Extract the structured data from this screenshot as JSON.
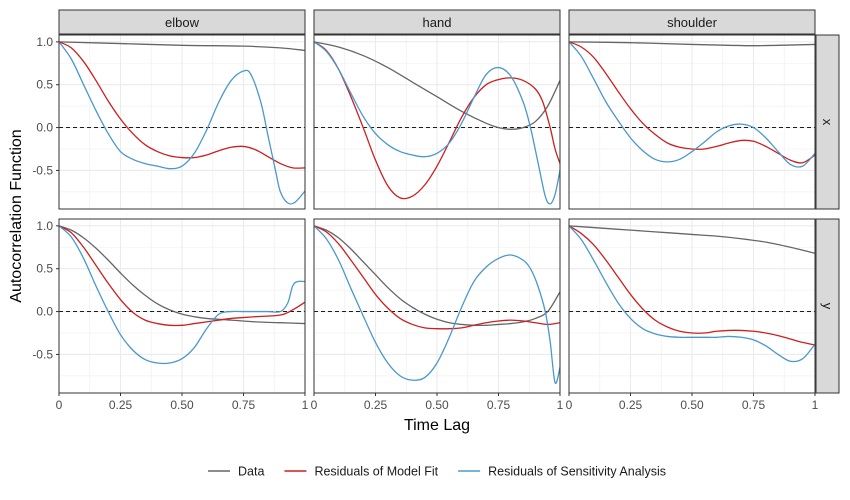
{
  "chart_data": {
    "type": "line",
    "xlabel": "Time Lag",
    "ylabel": "Autocorrelation Function",
    "xlim": [
      0,
      1
    ],
    "ylim": [
      -0.95,
      1.08
    ],
    "x_ticks": [
      0,
      0.25,
      0.5,
      0.75,
      1
    ],
    "x_tick_labels": [
      "0",
      "0.25",
      "0.50",
      "0.75",
      "1"
    ],
    "y_ticks": [
      -0.5,
      0,
      0.5,
      1
    ],
    "y_tick_labels": [
      "-0.5",
      "0.0",
      "0.5",
      "1.0"
    ],
    "reference_line": {
      "y": 0,
      "style": "dashed"
    },
    "grid": true,
    "legend_position": "bottom",
    "columns": [
      "elbow",
      "hand",
      "shoulder"
    ],
    "rows": [
      "x",
      "y"
    ],
    "colors": {
      "Data": "#666666",
      "Residuals of Model Fit": "#cc1f1f",
      "Residuals of Sensitivity Analysis": "#4a98cc"
    },
    "legend": [
      "Data",
      "Residuals of Model Fit",
      "Residuals of Sensitivity Analysis"
    ],
    "panels": [
      {
        "col": "elbow",
        "row": "x",
        "series": [
          {
            "name": "Data",
            "x": [
              0,
              0.25,
              0.5,
              0.75,
              0.9,
              1.0
            ],
            "y": [
              1.0,
              0.98,
              0.96,
              0.95,
              0.93,
              0.9
            ]
          },
          {
            "name": "Residuals of Model Fit",
            "x": [
              0,
              0.05,
              0.1,
              0.15,
              0.2,
              0.25,
              0.3,
              0.35,
              0.4,
              0.45,
              0.5,
              0.55,
              0.6,
              0.65,
              0.7,
              0.75,
              0.8,
              0.85,
              0.9,
              0.95,
              1.0
            ],
            "y": [
              1.0,
              0.93,
              0.77,
              0.55,
              0.31,
              0.1,
              -0.07,
              -0.2,
              -0.28,
              -0.33,
              -0.35,
              -0.35,
              -0.32,
              -0.27,
              -0.23,
              -0.22,
              -0.26,
              -0.34,
              -0.42,
              -0.47,
              -0.47
            ]
          },
          {
            "name": "Residuals of Sensitivity Analysis",
            "x": [
              0,
              0.05,
              0.1,
              0.15,
              0.2,
              0.25,
              0.3,
              0.35,
              0.4,
              0.45,
              0.5,
              0.55,
              0.6,
              0.65,
              0.7,
              0.75,
              0.78,
              0.82,
              0.85,
              0.88,
              0.9,
              0.93,
              0.96,
              1.0
            ],
            "y": [
              1.0,
              0.8,
              0.5,
              0.2,
              -0.07,
              -0.28,
              -0.37,
              -0.42,
              -0.45,
              -0.48,
              -0.45,
              -0.3,
              -0.03,
              0.3,
              0.55,
              0.66,
              0.62,
              0.3,
              -0.1,
              -0.5,
              -0.75,
              -0.88,
              -0.87,
              -0.74
            ]
          }
        ]
      },
      {
        "col": "hand",
        "row": "x",
        "series": [
          {
            "name": "Data",
            "x": [
              0,
              0.1,
              0.2,
              0.3,
              0.4,
              0.5,
              0.6,
              0.7,
              0.75,
              0.8,
              0.85,
              0.9,
              0.95,
              1.0
            ],
            "y": [
              1.0,
              0.94,
              0.84,
              0.7,
              0.53,
              0.36,
              0.19,
              0.05,
              0.0,
              -0.02,
              0.0,
              0.07,
              0.25,
              0.55
            ]
          },
          {
            "name": "Residuals of Model Fit",
            "x": [
              0,
              0.05,
              0.1,
              0.15,
              0.2,
              0.25,
              0.3,
              0.35,
              0.4,
              0.45,
              0.5,
              0.55,
              0.6,
              0.65,
              0.7,
              0.75,
              0.8,
              0.85,
              0.9,
              0.93,
              0.96,
              0.98,
              1.0
            ],
            "y": [
              1.0,
              0.9,
              0.68,
              0.36,
              0.0,
              -0.38,
              -0.68,
              -0.82,
              -0.8,
              -0.67,
              -0.45,
              -0.17,
              0.12,
              0.35,
              0.5,
              0.56,
              0.58,
              0.55,
              0.45,
              0.3,
              0.0,
              -0.25,
              -0.42
            ]
          },
          {
            "name": "Residuals of Sensitivity Analysis",
            "x": [
              0,
              0.05,
              0.1,
              0.15,
              0.2,
              0.25,
              0.3,
              0.35,
              0.4,
              0.45,
              0.5,
              0.55,
              0.6,
              0.65,
              0.7,
              0.75,
              0.8,
              0.85,
              0.88,
              0.91,
              0.94,
              0.96,
              0.98,
              1.0
            ],
            "y": [
              1.0,
              0.89,
              0.68,
              0.4,
              0.13,
              -0.07,
              -0.2,
              -0.28,
              -0.32,
              -0.34,
              -0.3,
              -0.18,
              0.05,
              0.35,
              0.62,
              0.7,
              0.6,
              0.3,
              0.0,
              -0.4,
              -0.8,
              -0.89,
              -0.78,
              -0.5
            ]
          }
        ]
      },
      {
        "col": "shoulder",
        "row": "x",
        "series": [
          {
            "name": "Data",
            "x": [
              0,
              0.25,
              0.5,
              0.65,
              0.75,
              0.85,
              1.0
            ],
            "y": [
              1.0,
              0.99,
              0.97,
              0.96,
              0.955,
              0.96,
              0.97
            ]
          },
          {
            "name": "Residuals of Model Fit",
            "x": [
              0,
              0.05,
              0.1,
              0.15,
              0.2,
              0.25,
              0.3,
              0.35,
              0.4,
              0.45,
              0.5,
              0.55,
              0.6,
              0.65,
              0.7,
              0.75,
              0.8,
              0.85,
              0.9,
              0.95,
              1.0
            ],
            "y": [
              1.0,
              0.94,
              0.82,
              0.63,
              0.42,
              0.22,
              0.05,
              -0.08,
              -0.18,
              -0.23,
              -0.25,
              -0.25,
              -0.22,
              -0.18,
              -0.15,
              -0.16,
              -0.22,
              -0.3,
              -0.38,
              -0.41,
              -0.32
            ]
          },
          {
            "name": "Residuals of Sensitivity Analysis",
            "x": [
              0,
              0.05,
              0.1,
              0.15,
              0.2,
              0.25,
              0.3,
              0.35,
              0.4,
              0.45,
              0.5,
              0.55,
              0.6,
              0.65,
              0.7,
              0.75,
              0.8,
              0.85,
              0.9,
              0.95,
              1.0
            ],
            "y": [
              1.0,
              0.83,
              0.57,
              0.3,
              0.08,
              -0.12,
              -0.27,
              -0.37,
              -0.4,
              -0.37,
              -0.28,
              -0.17,
              -0.05,
              0.02,
              0.04,
              0.0,
              -0.12,
              -0.28,
              -0.43,
              -0.45,
              -0.3
            ]
          }
        ]
      },
      {
        "col": "elbow",
        "row": "y",
        "series": [
          {
            "name": "Data",
            "x": [
              0,
              0.05,
              0.1,
              0.15,
              0.2,
              0.25,
              0.3,
              0.35,
              0.4,
              0.45,
              0.5,
              0.55,
              0.6,
              0.7,
              0.8,
              0.9,
              1.0
            ],
            "y": [
              1.0,
              0.95,
              0.86,
              0.74,
              0.6,
              0.45,
              0.31,
              0.19,
              0.09,
              0.02,
              -0.03,
              -0.06,
              -0.08,
              -0.1,
              -0.12,
              -0.13,
              -0.14
            ]
          },
          {
            "name": "Residuals of Model Fit",
            "x": [
              0,
              0.05,
              0.1,
              0.15,
              0.2,
              0.25,
              0.3,
              0.35,
              0.4,
              0.45,
              0.5,
              0.55,
              0.6,
              0.65,
              0.7,
              0.8,
              0.9,
              0.95,
              1.0
            ],
            "y": [
              1.0,
              0.92,
              0.75,
              0.54,
              0.33,
              0.14,
              -0.01,
              -0.1,
              -0.14,
              -0.16,
              -0.16,
              -0.14,
              -0.12,
              -0.1,
              -0.08,
              -0.06,
              -0.04,
              0.02,
              0.11
            ]
          },
          {
            "name": "Residuals of Sensitivity Analysis",
            "x": [
              0,
              0.05,
              0.1,
              0.15,
              0.2,
              0.25,
              0.3,
              0.35,
              0.4,
              0.45,
              0.5,
              0.55,
              0.6,
              0.65,
              0.7,
              0.75,
              0.8,
              0.85,
              0.9,
              0.93,
              0.95,
              0.97,
              1.0
            ],
            "y": [
              1.0,
              0.87,
              0.62,
              0.3,
              0.0,
              -0.27,
              -0.45,
              -0.56,
              -0.6,
              -0.6,
              -0.55,
              -0.42,
              -0.2,
              -0.03,
              0.0,
              0.0,
              0.0,
              0.0,
              0.0,
              0.1,
              0.3,
              0.35,
              0.35
            ]
          }
        ]
      },
      {
        "col": "hand",
        "row": "y",
        "series": [
          {
            "name": "Data",
            "x": [
              0,
              0.05,
              0.1,
              0.15,
              0.2,
              0.25,
              0.3,
              0.35,
              0.4,
              0.45,
              0.5,
              0.55,
              0.6,
              0.65,
              0.7,
              0.75,
              0.8,
              0.85,
              0.9,
              0.95,
              1.0
            ],
            "y": [
              1.0,
              0.95,
              0.86,
              0.73,
              0.58,
              0.43,
              0.28,
              0.15,
              0.05,
              -0.03,
              -0.09,
              -0.13,
              -0.15,
              -0.16,
              -0.16,
              -0.15,
              -0.14,
              -0.12,
              -0.08,
              0.0,
              0.23
            ]
          },
          {
            "name": "Residuals of Model Fit",
            "x": [
              0,
              0.05,
              0.1,
              0.15,
              0.2,
              0.25,
              0.3,
              0.35,
              0.4,
              0.45,
              0.5,
              0.55,
              0.6,
              0.65,
              0.7,
              0.75,
              0.8,
              0.85,
              0.9,
              0.95,
              1.0
            ],
            "y": [
              1.0,
              0.93,
              0.79,
              0.6,
              0.4,
              0.2,
              0.04,
              -0.08,
              -0.15,
              -0.19,
              -0.2,
              -0.2,
              -0.19,
              -0.16,
              -0.13,
              -0.11,
              -0.1,
              -0.11,
              -0.13,
              -0.15,
              -0.13
            ]
          },
          {
            "name": "Residuals of Sensitivity Analysis",
            "x": [
              0,
              0.05,
              0.1,
              0.15,
              0.2,
              0.25,
              0.3,
              0.35,
              0.4,
              0.45,
              0.5,
              0.55,
              0.6,
              0.65,
              0.7,
              0.75,
              0.8,
              0.85,
              0.88,
              0.91,
              0.94,
              0.96,
              0.98,
              1.0
            ],
            "y": [
              1.0,
              0.85,
              0.6,
              0.27,
              -0.05,
              -0.36,
              -0.6,
              -0.75,
              -0.8,
              -0.77,
              -0.6,
              -0.3,
              0.05,
              0.35,
              0.52,
              0.62,
              0.66,
              0.6,
              0.5,
              0.3,
              0.0,
              -0.35,
              -0.83,
              -0.65
            ]
          }
        ]
      },
      {
        "col": "shoulder",
        "row": "y",
        "series": [
          {
            "name": "Data",
            "x": [
              0,
              0.1,
              0.2,
              0.3,
              0.4,
              0.5,
              0.6,
              0.7,
              0.8,
              0.9,
              1.0
            ],
            "y": [
              1.0,
              0.98,
              0.96,
              0.94,
              0.92,
              0.9,
              0.88,
              0.85,
              0.81,
              0.75,
              0.68
            ]
          },
          {
            "name": "Residuals of Model Fit",
            "x": [
              0,
              0.05,
              0.1,
              0.15,
              0.2,
              0.25,
              0.3,
              0.35,
              0.4,
              0.45,
              0.5,
              0.55,
              0.6,
              0.65,
              0.7,
              0.75,
              0.8,
              0.85,
              0.9,
              0.95,
              1.0
            ],
            "y": [
              1.0,
              0.91,
              0.78,
              0.6,
              0.4,
              0.2,
              0.03,
              -0.1,
              -0.18,
              -0.23,
              -0.25,
              -0.25,
              -0.23,
              -0.22,
              -0.22,
              -0.23,
              -0.25,
              -0.28,
              -0.32,
              -0.36,
              -0.39
            ]
          },
          {
            "name": "Residuals of Sensitivity Analysis",
            "x": [
              0,
              0.05,
              0.1,
              0.15,
              0.2,
              0.25,
              0.3,
              0.35,
              0.4,
              0.45,
              0.5,
              0.55,
              0.6,
              0.65,
              0.7,
              0.75,
              0.8,
              0.85,
              0.9,
              0.95,
              1.0
            ],
            "y": [
              1.0,
              0.84,
              0.6,
              0.34,
              0.1,
              -0.08,
              -0.2,
              -0.26,
              -0.29,
              -0.3,
              -0.3,
              -0.3,
              -0.3,
              -0.29,
              -0.3,
              -0.33,
              -0.4,
              -0.5,
              -0.58,
              -0.55,
              -0.38
            ]
          }
        ]
      }
    ]
  }
}
